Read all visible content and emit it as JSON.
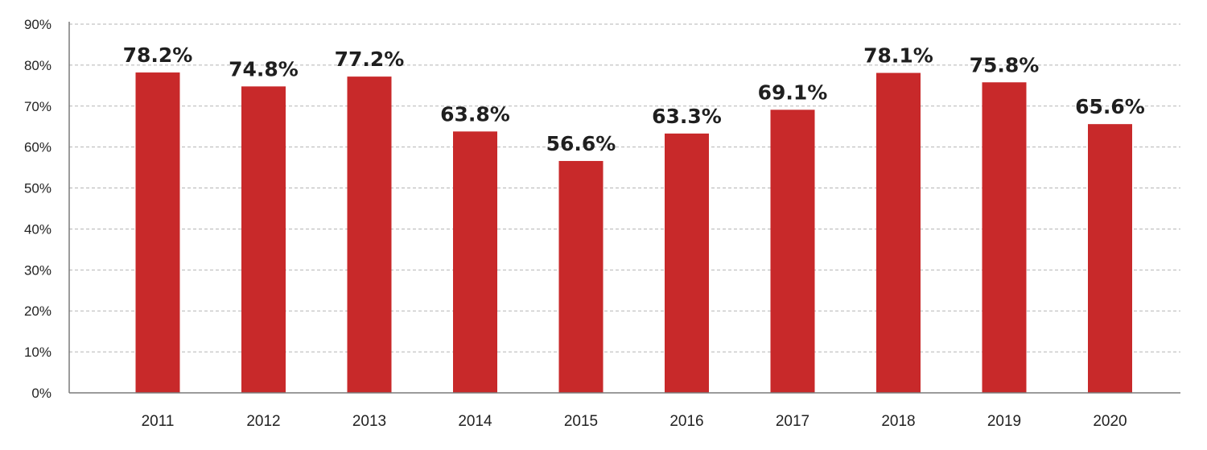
{
  "chart_data": {
    "type": "bar",
    "categories": [
      "2011",
      "2012",
      "2013",
      "2014",
      "2015",
      "2016",
      "2017",
      "2018",
      "2019",
      "2020"
    ],
    "values": [
      78.2,
      74.8,
      77.2,
      63.8,
      56.6,
      63.3,
      69.1,
      78.1,
      75.8,
      65.6
    ],
    "value_labels": [
      "78.2%",
      "74.8%",
      "77.2%",
      "63.8%",
      "56.6%",
      "63.3%",
      "69.1%",
      "78.1%",
      "75.8%",
      "65.6%"
    ],
    "y_ticks": [
      0,
      10,
      20,
      30,
      40,
      50,
      60,
      70,
      80,
      90
    ],
    "y_tick_labels": [
      "0%",
      "10%",
      "20%",
      "30%",
      "40%",
      "50%",
      "60%",
      "70%",
      "80%",
      "90%"
    ],
    "ylim": [
      0,
      90
    ],
    "grid": true,
    "legend": "none",
    "colors": {
      "bar": "#c8292a",
      "grid": "#b5b5b5",
      "axis": "#7a7a7a",
      "text": "#222222"
    }
  }
}
